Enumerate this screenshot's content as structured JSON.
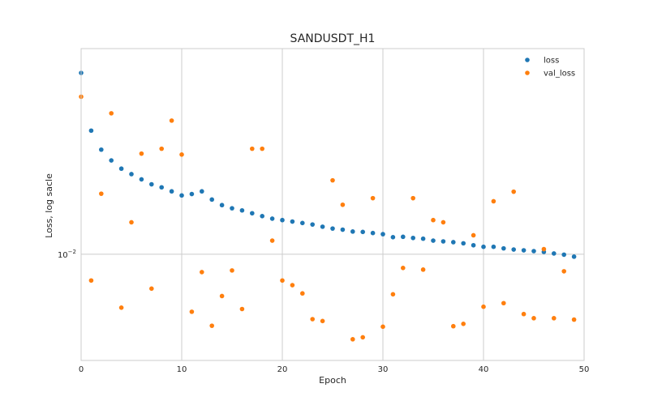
{
  "chart_data": {
    "type": "scatter",
    "title": "SANDUSDT_H1",
    "xlabel": "Epoch",
    "ylabel": "Loss, log sacle",
    "xlim": [
      0,
      50
    ],
    "y_scale": "log",
    "ylim": [
      0.00765,
      0.0168
    ],
    "x_ticks": [
      {
        "value": 0,
        "label": "0"
      },
      {
        "value": 10,
        "label": "10"
      },
      {
        "value": 20,
        "label": "20"
      },
      {
        "value": 30,
        "label": "30"
      },
      {
        "value": 40,
        "label": "40"
      },
      {
        "value": 50,
        "label": "50"
      }
    ],
    "y_ticks": [
      {
        "value": 0.01,
        "base": "10",
        "exponent": "−2"
      }
    ],
    "grid": true,
    "legend_position": "top-right",
    "series": [
      {
        "name": "loss",
        "color": "#1f77b4",
        "x": [
          0,
          1,
          2,
          3,
          4,
          5,
          6,
          7,
          8,
          9,
          10,
          11,
          12,
          13,
          14,
          15,
          16,
          17,
          18,
          19,
          20,
          21,
          22,
          23,
          24,
          25,
          26,
          27,
          28,
          29,
          30,
          31,
          32,
          33,
          34,
          35,
          36,
          37,
          38,
          39,
          40,
          41,
          42,
          43,
          44,
          45,
          46,
          47,
          48,
          49
        ],
        "values": [
          0.0158,
          0.01366,
          0.01302,
          0.01267,
          0.01241,
          0.01224,
          0.01208,
          0.01193,
          0.01184,
          0.01172,
          0.0116,
          0.01164,
          0.01172,
          0.01148,
          0.01132,
          0.01123,
          0.01117,
          0.01109,
          0.01101,
          0.01094,
          0.0109,
          0.01086,
          0.01082,
          0.01078,
          0.01072,
          0.01067,
          0.01064,
          0.01059,
          0.01058,
          0.01055,
          0.01052,
          0.01044,
          0.01045,
          0.01042,
          0.0104,
          0.01035,
          0.01033,
          0.01031,
          0.01028,
          0.01023,
          0.01019,
          0.01019,
          0.01015,
          0.01012,
          0.0101,
          0.01008,
          0.01006,
          0.01002,
          0.00999,
          0.00994
        ]
      },
      {
        "name": "val_loss",
        "color": "#ff7f0e",
        "x": [
          0,
          1,
          2,
          3,
          4,
          5,
          6,
          7,
          8,
          9,
          10,
          11,
          12,
          13,
          14,
          15,
          16,
          17,
          18,
          19,
          20,
          21,
          22,
          23,
          24,
          25,
          26,
          27,
          28,
          29,
          30,
          31,
          32,
          33,
          34,
          35,
          36,
          37,
          38,
          39,
          40,
          41,
          42,
          43,
          44,
          45,
          46,
          47,
          48,
          49
        ],
        "values": [
          0.01488,
          0.00936,
          0.01165,
          0.01427,
          0.00874,
          0.01084,
          0.01289,
          0.00917,
          0.01305,
          0.01401,
          0.01286,
          0.00865,
          0.00956,
          0.00835,
          0.009,
          0.0096,
          0.00871,
          0.01305,
          0.01305,
          0.01035,
          0.00936,
          0.00925,
          0.00906,
          0.00849,
          0.00845,
          0.01205,
          0.01133,
          0.00807,
          0.00811,
          0.01152,
          0.00833,
          0.00904,
          0.00966,
          0.01152,
          0.00962,
          0.0109,
          0.01084,
          0.00834,
          0.00839,
          0.01049,
          0.00876,
          0.01143,
          0.00884,
          0.01171,
          0.0086,
          0.00851,
          0.01013,
          0.00851,
          0.00958,
          0.00848
        ]
      }
    ]
  }
}
